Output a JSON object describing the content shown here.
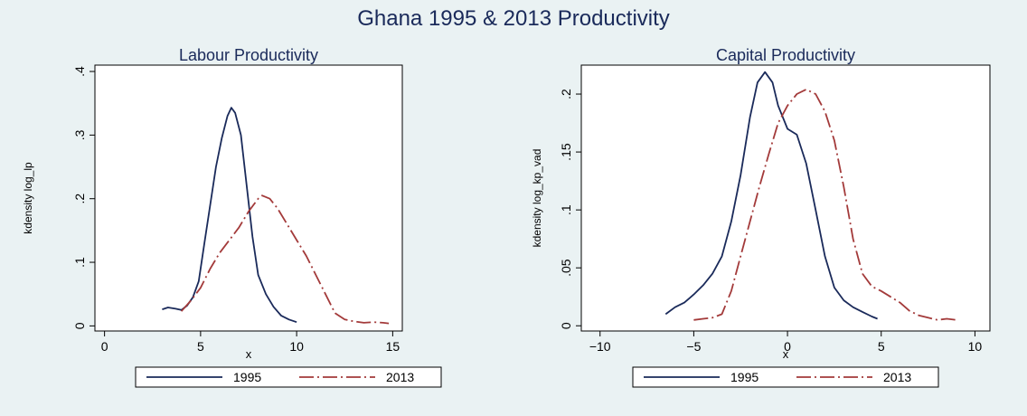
{
  "figure": {
    "title": "Ghana 1995 & 2013 Productivity"
  },
  "chart_data": [
    {
      "type": "line",
      "title": "Labour Productivity",
      "xlabel": "x",
      "ylabel": "kdensity log_lp",
      "xlim": [
        -0.5,
        15.5
      ],
      "ylim": [
        -0.008,
        0.41
      ],
      "xticks": [
        0,
        5,
        10,
        15
      ],
      "xtick_labels": [
        "0",
        "5",
        "10",
        "15"
      ],
      "yticks": [
        0,
        0.1,
        0.2,
        0.3,
        0.4
      ],
      "ytick_labels": [
        "0",
        ".1",
        ".2",
        ".3",
        ".4"
      ],
      "grid": false,
      "legend_position": "bottom",
      "series": [
        {
          "name": "1995",
          "color": "#1a2a5a",
          "style": "solid",
          "points": [
            [
              3.0,
              0.026
            ],
            [
              3.3,
              0.029
            ],
            [
              3.7,
              0.027
            ],
            [
              4.0,
              0.025
            ],
            [
              4.3,
              0.032
            ],
            [
              4.6,
              0.045
            ],
            [
              4.9,
              0.07
            ],
            [
              5.2,
              0.13
            ],
            [
              5.5,
              0.19
            ],
            [
              5.8,
              0.25
            ],
            [
              6.1,
              0.295
            ],
            [
              6.4,
              0.33
            ],
            [
              6.6,
              0.343
            ],
            [
              6.8,
              0.335
            ],
            [
              7.1,
              0.3
            ],
            [
              7.4,
              0.22
            ],
            [
              7.7,
              0.14
            ],
            [
              8.0,
              0.08
            ],
            [
              8.4,
              0.05
            ],
            [
              8.8,
              0.03
            ],
            [
              9.2,
              0.016
            ],
            [
              9.6,
              0.01
            ],
            [
              10.0,
              0.006
            ]
          ]
        },
        {
          "name": "2013",
          "color": "#a33a3a",
          "style": "dash-dot",
          "points": [
            [
              4.0,
              0.023
            ],
            [
              4.5,
              0.04
            ],
            [
              5.0,
              0.06
            ],
            [
              5.5,
              0.09
            ],
            [
              6.0,
              0.115
            ],
            [
              6.5,
              0.135
            ],
            [
              7.0,
              0.155
            ],
            [
              7.5,
              0.18
            ],
            [
              8.0,
              0.2
            ],
            [
              8.2,
              0.205
            ],
            [
              8.6,
              0.2
            ],
            [
              9.0,
              0.185
            ],
            [
              9.5,
              0.16
            ],
            [
              10.0,
              0.135
            ],
            [
              10.5,
              0.11
            ],
            [
              11.0,
              0.08
            ],
            [
              11.5,
              0.05
            ],
            [
              12.0,
              0.02
            ],
            [
              12.5,
              0.01
            ],
            [
              13.0,
              0.007
            ],
            [
              13.5,
              0.005
            ],
            [
              14.0,
              0.006
            ],
            [
              14.5,
              0.005
            ],
            [
              14.8,
              0.004
            ]
          ]
        }
      ]
    },
    {
      "type": "line",
      "title": "Capital Productivity",
      "xlabel": "x",
      "ylabel": "kdensity log_kp_vad",
      "xlim": [
        -11,
        10.8
      ],
      "ylim": [
        -0.0045,
        0.225
      ],
      "xticks": [
        -10,
        -5,
        0,
        5,
        10
      ],
      "xtick_labels": [
        "−10",
        "−5",
        "0",
        "5",
        "10"
      ],
      "yticks": [
        0,
        0.05,
        0.1,
        0.15,
        0.2
      ],
      "ytick_labels": [
        "0",
        ".05",
        ".1",
        ".15",
        ".2"
      ],
      "grid": false,
      "legend_position": "bottom",
      "series": [
        {
          "name": "1995",
          "color": "#1a2a5a",
          "style": "solid",
          "points": [
            [
              -6.5,
              0.01
            ],
            [
              -6.0,
              0.016
            ],
            [
              -5.5,
              0.02
            ],
            [
              -5.0,
              0.027
            ],
            [
              -4.5,
              0.035
            ],
            [
              -4.0,
              0.045
            ],
            [
              -3.5,
              0.06
            ],
            [
              -3.0,
              0.09
            ],
            [
              -2.5,
              0.13
            ],
            [
              -2.0,
              0.18
            ],
            [
              -1.6,
              0.21
            ],
            [
              -1.2,
              0.219
            ],
            [
              -0.8,
              0.21
            ],
            [
              -0.5,
              0.19
            ],
            [
              0.0,
              0.17
            ],
            [
              0.5,
              0.165
            ],
            [
              1.0,
              0.14
            ],
            [
              1.5,
              0.1
            ],
            [
              2.0,
              0.06
            ],
            [
              2.5,
              0.033
            ],
            [
              3.0,
              0.022
            ],
            [
              3.5,
              0.016
            ],
            [
              4.0,
              0.012
            ],
            [
              4.5,
              0.008
            ],
            [
              4.8,
              0.006
            ]
          ]
        },
        {
          "name": "2013",
          "color": "#a33a3a",
          "style": "dash-dot",
          "points": [
            [
              -5.0,
              0.005
            ],
            [
              -4.5,
              0.006
            ],
            [
              -4.0,
              0.007
            ],
            [
              -3.5,
              0.01
            ],
            [
              -3.0,
              0.03
            ],
            [
              -2.5,
              0.06
            ],
            [
              -2.0,
              0.09
            ],
            [
              -1.5,
              0.12
            ],
            [
              -1.0,
              0.148
            ],
            [
              -0.5,
              0.175
            ],
            [
              0.0,
              0.19
            ],
            [
              0.5,
              0.2
            ],
            [
              1.0,
              0.204
            ],
            [
              1.5,
              0.2
            ],
            [
              2.0,
              0.185
            ],
            [
              2.5,
              0.16
            ],
            [
              3.0,
              0.12
            ],
            [
              3.5,
              0.075
            ],
            [
              4.0,
              0.045
            ],
            [
              4.5,
              0.034
            ],
            [
              5.0,
              0.03
            ],
            [
              5.5,
              0.025
            ],
            [
              6.0,
              0.02
            ],
            [
              6.5,
              0.013
            ],
            [
              7.0,
              0.009
            ],
            [
              7.5,
              0.007
            ],
            [
              8.0,
              0.005
            ],
            [
              8.5,
              0.006
            ],
            [
              9.0,
              0.005
            ]
          ]
        }
      ]
    }
  ]
}
